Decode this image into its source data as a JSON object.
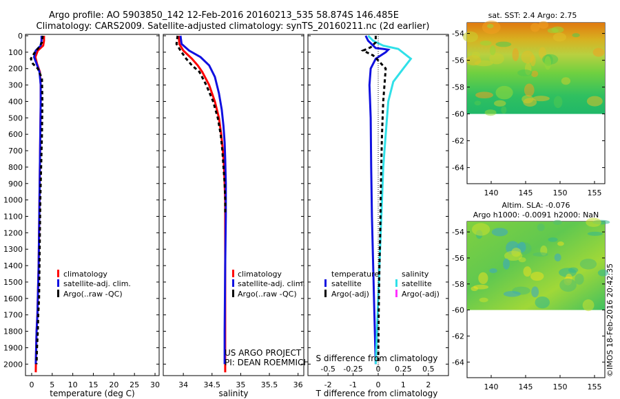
{
  "header": {
    "title_line1": "Argo profile: AO 5903850_142 12-Feb-2016 20160213_535 58.874S 146.485E",
    "title_line2": "Climatology: CARS2009. Satellite-adjusted climatology: synTS_20160211.nc (2d earlier)"
  },
  "colors": {
    "climatology": "#ff0000",
    "satellite": "#1010e0",
    "argo": "#000000",
    "sat_salinity": "#30e0e8",
    "argo_salinity_adj": "#ff30ff"
  },
  "chart_data": [
    {
      "type": "line",
      "name": "temperature",
      "xlabel": "temperature (deg C)",
      "xlim": [
        -1.5,
        31
      ],
      "xticks": [
        0,
        5,
        10,
        15,
        20,
        25,
        30
      ],
      "ylim": [
        0,
        2070
      ],
      "yticks": [
        0,
        100,
        200,
        300,
        400,
        500,
        600,
        700,
        800,
        900,
        1000,
        1100,
        1200,
        1300,
        1400,
        1500,
        1600,
        1700,
        1800,
        1900,
        2000
      ],
      "legend": [
        "climatology",
        "satellite-adj. clim.",
        "Argo(..raw -QC)"
      ],
      "series": [
        {
          "name": "climatology",
          "style": "solid",
          "x": [
            3.0,
            3.0,
            2.8,
            1.5,
            0.9,
            1.3,
            2.0,
            2.2,
            2.2,
            2.1,
            2.0,
            1.9,
            1.8,
            1.7,
            1.5,
            1.4,
            1.2,
            1.1,
            1.0
          ],
          "y": [
            0,
            30,
            60,
            90,
            130,
            170,
            220,
            300,
            400,
            600,
            800,
            1000,
            1200,
            1400,
            1600,
            1700,
            1800,
            1900,
            2050
          ]
        },
        {
          "name": "satellite-adj. clim.",
          "style": "solid",
          "x": [
            2.4,
            2.4,
            2.2,
            1.0,
            0.6,
            1.2,
            1.9,
            2.2,
            2.2,
            2.1,
            2.0,
            1.9,
            1.8,
            1.7,
            1.5,
            1.4,
            1.2,
            1.1,
            1.0
          ],
          "y": [
            0,
            30,
            60,
            90,
            130,
            170,
            220,
            300,
            400,
            600,
            800,
            1000,
            1200,
            1400,
            1600,
            1700,
            1800,
            1900,
            2000
          ]
        },
        {
          "name": "Argo(..raw -QC)",
          "style": "dashed",
          "x": [
            2.7,
            2.5,
            1.8,
            0.8,
            -0.2,
            0.3,
            1.5,
            2.5,
            2.6,
            2.5,
            2.3,
            2.1,
            2.0,
            1.9,
            1.8,
            1.6,
            1.5,
            1.3,
            1.2
          ],
          "y": [
            0,
            40,
            70,
            100,
            140,
            170,
            200,
            260,
            400,
            600,
            800,
            1000,
            1200,
            1400,
            1600,
            1700,
            1800,
            1900,
            2000
          ]
        }
      ]
    },
    {
      "type": "line",
      "name": "salinity",
      "xlabel": "salinity",
      "xlim": [
        33.65,
        36.1
      ],
      "xticks": [
        34,
        34.5,
        35,
        35.5,
        36
      ],
      "ylim": [
        0,
        2070
      ],
      "legend": [
        "climatology",
        "satellite-adj. clim.",
        "Argo(..raw -QC)"
      ],
      "annotation": [
        "US ARGO PROJECT",
        "PI: DEAN ROEMMICH"
      ],
      "series": [
        {
          "name": "climatology",
          "style": "solid",
          "x": [
            33.92,
            33.93,
            34.0,
            34.15,
            34.25,
            34.33,
            34.45,
            34.55,
            34.62,
            34.66,
            34.69,
            34.71,
            34.72,
            34.73,
            34.73,
            34.73,
            34.73
          ],
          "y": [
            0,
            50,
            90,
            140,
            180,
            220,
            300,
            400,
            500,
            600,
            700,
            800,
            900,
            1000,
            1200,
            1600,
            2050
          ]
        },
        {
          "name": "satellite-adj. clim.",
          "style": "solid",
          "x": [
            33.95,
            33.97,
            34.1,
            34.3,
            34.45,
            34.55,
            34.62,
            34.67,
            34.7,
            34.72,
            34.73,
            34.74,
            34.74,
            34.73,
            34.72,
            34.72
          ],
          "y": [
            0,
            50,
            90,
            130,
            180,
            250,
            350,
            450,
            550,
            650,
            750,
            900,
            1100,
            1400,
            1800,
            2000
          ]
        },
        {
          "name": "Argo(..raw -QC)",
          "style": "dashed",
          "x": [
            33.9,
            33.88,
            33.95,
            34.05,
            34.15,
            34.28,
            34.4,
            34.52,
            34.6,
            34.65,
            34.68,
            34.7,
            34.72,
            34.73,
            34.73
          ],
          "y": [
            0,
            50,
            90,
            140,
            180,
            220,
            300,
            400,
            500,
            600,
            700,
            800,
            900,
            1000,
            1080
          ]
        }
      ]
    },
    {
      "type": "line",
      "name": "difference",
      "xlabel": "T difference from climatology",
      "toplabel": "S difference from climatology",
      "xlim": [
        -2.8,
        2.8
      ],
      "xticks": [
        -2,
        -1,
        0,
        1,
        2
      ],
      "xtick_labels": [
        "-2",
        "-1",
        "0",
        "1",
        "2"
      ],
      "sticks": [
        -2,
        -1,
        0,
        1,
        2
      ],
      "stick_labels": [
        "-0.5",
        "-0.25",
        "0",
        "0.25",
        "0.5"
      ],
      "ylim": [
        0,
        2070
      ],
      "legend_temperature_title": "temperature",
      "legend_salinity_title": "salinity",
      "legend": [
        "satellite",
        "Argo(-adj)",
        "satellite",
        "Argo(-adj)"
      ],
      "series": [
        {
          "name": "T satellite",
          "style": "solid",
          "x": [
            -0.5,
            -0.4,
            -0.2,
            -0.1,
            0.2,
            0.4,
            0.3,
            -0.1,
            -0.3,
            -0.35,
            -0.3,
            -0.28,
            -0.25,
            -0.2,
            -0.15,
            -0.1
          ],
          "y": [
            0,
            30,
            60,
            75,
            80,
            85,
            100,
            140,
            200,
            300,
            500,
            800,
            1100,
            1400,
            1700,
            2000
          ]
        },
        {
          "name": "S satellite",
          "style": "solid",
          "x": [
            -0.4,
            -0.2,
            0.2,
            0.8,
            1.3,
            1.0,
            0.6,
            0.4,
            0.3,
            0.2,
            0.15,
            0.1,
            0.05,
            0.0,
            -0.05,
            -0.1
          ],
          "y": [
            0,
            30,
            60,
            80,
            140,
            200,
            280,
            400,
            600,
            800,
            1000,
            1200,
            1400,
            1600,
            1800,
            2000
          ]
        },
        {
          "name": "T Argo(-adj)",
          "style": "dashed",
          "x": [
            -0.1,
            -0.1,
            -0.3,
            -0.6,
            -0.2,
            0.0,
            0.3,
            0.25,
            0.2,
            0.15,
            0.12,
            0.1,
            0.08,
            0.05,
            0.02,
            0.0
          ],
          "y": [
            0,
            40,
            70,
            90,
            120,
            150,
            200,
            300,
            400,
            600,
            800,
            1000,
            1200,
            1400,
            1700,
            2000
          ]
        }
      ]
    }
  ],
  "maps": {
    "sst": {
      "title": "sat. SST: 2.4 Argo: 2.75",
      "yticks": [
        -54,
        -56,
        -58,
        -60,
        -62,
        -64
      ],
      "ytick_labels": [
        "-54",
        "-56",
        "-58",
        "-60",
        "-62",
        "-64"
      ],
      "xticks": [
        140,
        145,
        150,
        155
      ],
      "xtick_labels": [
        "140",
        "145",
        "150",
        "155"
      ],
      "xlim": [
        136.5,
        156.5
      ],
      "ylim": [
        -65.2,
        -53.2
      ],
      "data_bottom": -60
    },
    "sla": {
      "title_line1": "Altim. SLA: -0.076",
      "title_line2": "Argo h1000: -0.0091 h2000: NaN",
      "yticks": [
        -54,
        -56,
        -58,
        -60,
        -62,
        -64
      ],
      "ytick_labels": [
        "-54",
        "-56",
        "-58",
        "-60",
        "-62",
        "-64"
      ],
      "xticks": [
        140,
        145,
        150,
        155
      ],
      "xtick_labels": [
        "140",
        "145",
        "150",
        "155"
      ],
      "xlim": [
        136.5,
        156.5
      ],
      "ylim": [
        -65.2,
        -53.2
      ],
      "data_bottom": -60
    }
  },
  "credit": "©IMOS 18-Feb-2016 20:42:35"
}
